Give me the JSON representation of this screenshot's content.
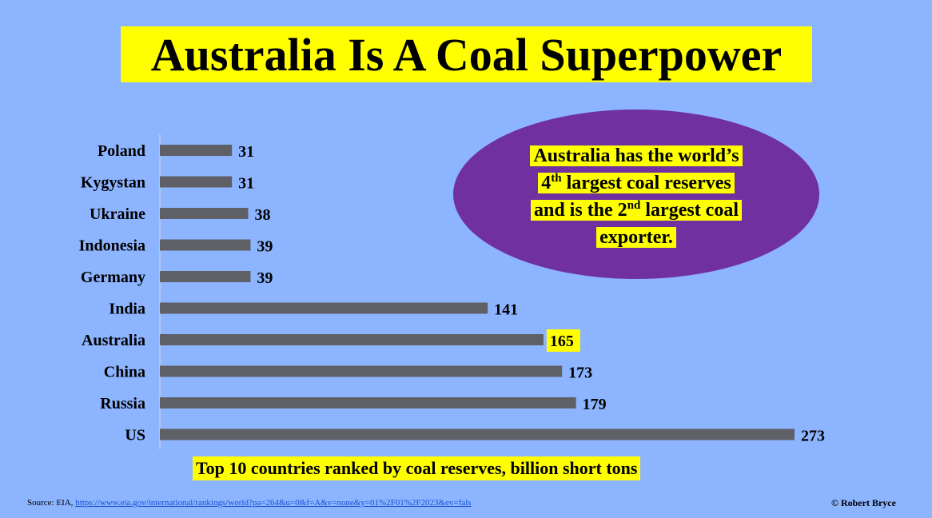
{
  "title": "Australia Is A Coal Superpower",
  "callout": {
    "line1": "Australia has the world’s",
    "line2_pre": "4",
    "line2_sup": "th",
    "line2_post": " largest coal reserves",
    "line3_pre": "and is the 2",
    "line3_sup": "nd",
    "line3_post": " largest coal",
    "line4": "exporter."
  },
  "caption": "Top 10 countries ranked by coal reserves, billion short tons",
  "source_prefix": "Source:  EIA, ",
  "source_link": "https://www.eia.gov/international/rankings/world?pa=264&u=0&f=A&v=none&y=01%2F01%2F2023&ev=fals",
  "credit": "© Robert Bryce",
  "colors": {
    "background": "#8cb4ff",
    "bar": "#5f5f66",
    "highlight": "#ffff00",
    "ellipse": "#7030a0"
  },
  "chart_data": {
    "type": "bar",
    "orientation": "horizontal",
    "categories": [
      "Poland",
      "Kygystan",
      "Ukraine",
      "Indonesia",
      "Germany",
      "India",
      "Australia",
      "China",
      "Russia",
      "US"
    ],
    "values": [
      31,
      31,
      38,
      39,
      39,
      141,
      165,
      173,
      179,
      273
    ],
    "highlighted_category": "Australia",
    "data_labels": true,
    "grid": false
  }
}
